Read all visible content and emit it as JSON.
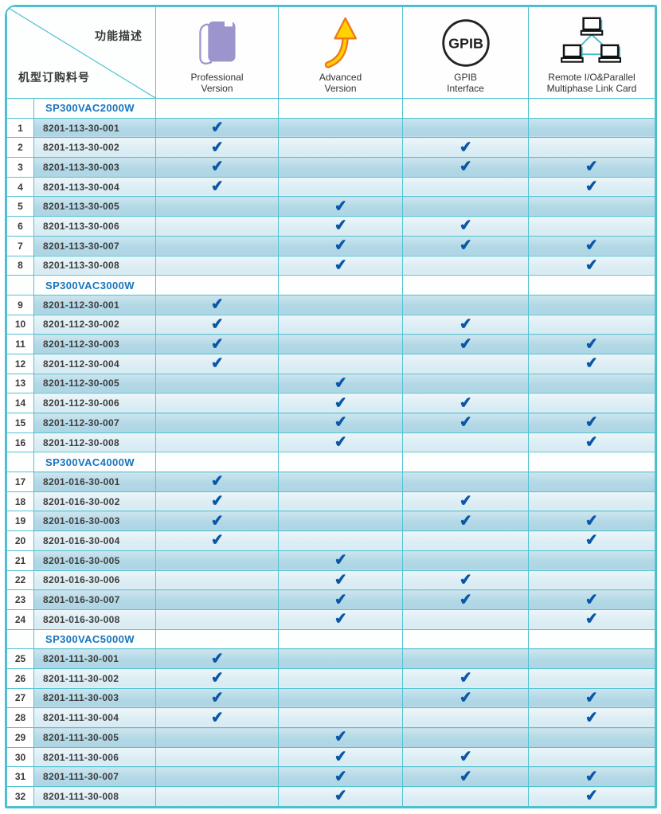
{
  "check_glyph": "✔",
  "colors": {
    "border_cyan": "#4bbfd2",
    "row_dark": "#b2d8e6",
    "row_light": "#dcedf4",
    "check_blue": "#0a57a7",
    "model_blue": "#1874bd",
    "book_purple": "#9b94cd",
    "arrow_yellow": "#ffd200",
    "arrow_orange": "#f07818",
    "laptop_teal": "#45b8c8"
  },
  "header": {
    "diagonal_top": "功能描述",
    "diagonal_bottom": "机型订购料号",
    "columns": [
      {
        "id": "professional",
        "icon": "book-icon",
        "label_lines": [
          "Professional",
          "Version"
        ]
      },
      {
        "id": "advanced",
        "icon": "up-arrow-icon",
        "label_lines": [
          "Advanced",
          "Version"
        ]
      },
      {
        "id": "gpib",
        "icon": "gpib-circle-icon",
        "icon_text": "GPIB",
        "label_lines": [
          "GPIB",
          "Interface"
        ]
      },
      {
        "id": "remote",
        "icon": "network-computers-icon",
        "label_lines": [
          "Remote I/O&Parallel",
          "Multiphase Link Card"
        ]
      }
    ]
  },
  "sections": [
    {
      "model": "SP300VAC2000W",
      "rows": [
        {
          "num": "1",
          "part": "8201-113-30-001",
          "checks": [
            1,
            0,
            0,
            0
          ]
        },
        {
          "num": "2",
          "part": "8201-113-30-002",
          "checks": [
            1,
            0,
            1,
            0
          ]
        },
        {
          "num": "3",
          "part": "8201-113-30-003",
          "checks": [
            1,
            0,
            1,
            1
          ]
        },
        {
          "num": "4",
          "part": "8201-113-30-004",
          "checks": [
            1,
            0,
            0,
            1
          ]
        },
        {
          "num": "5",
          "part": "8201-113-30-005",
          "checks": [
            0,
            1,
            0,
            0
          ]
        },
        {
          "num": "6",
          "part": "8201-113-30-006",
          "checks": [
            0,
            1,
            1,
            0
          ]
        },
        {
          "num": "7",
          "part": "8201-113-30-007",
          "checks": [
            0,
            1,
            1,
            1
          ]
        },
        {
          "num": "8",
          "part": "8201-113-30-008",
          "checks": [
            0,
            1,
            0,
            1
          ]
        }
      ]
    },
    {
      "model": "SP300VAC3000W",
      "rows": [
        {
          "num": "9",
          "part": "8201-112-30-001",
          "checks": [
            1,
            0,
            0,
            0
          ]
        },
        {
          "num": "10",
          "part": "8201-112-30-002",
          "checks": [
            1,
            0,
            1,
            0
          ]
        },
        {
          "num": "11",
          "part": "8201-112-30-003",
          "checks": [
            1,
            0,
            1,
            1
          ]
        },
        {
          "num": "12",
          "part": "8201-112-30-004",
          "checks": [
            1,
            0,
            0,
            1
          ]
        },
        {
          "num": "13",
          "part": "8201-112-30-005",
          "checks": [
            0,
            1,
            0,
            0
          ]
        },
        {
          "num": "14",
          "part": "8201-112-30-006",
          "checks": [
            0,
            1,
            1,
            0
          ]
        },
        {
          "num": "15",
          "part": "8201-112-30-007",
          "checks": [
            0,
            1,
            1,
            1
          ]
        },
        {
          "num": "16",
          "part": "8201-112-30-008",
          "checks": [
            0,
            1,
            0,
            1
          ]
        }
      ]
    },
    {
      "model": "SP300VAC4000W",
      "rows": [
        {
          "num": "17",
          "part": "8201-016-30-001",
          "checks": [
            1,
            0,
            0,
            0
          ]
        },
        {
          "num": "18",
          "part": "8201-016-30-002",
          "checks": [
            1,
            0,
            1,
            0
          ]
        },
        {
          "num": "19",
          "part": "8201-016-30-003",
          "checks": [
            1,
            0,
            1,
            1
          ]
        },
        {
          "num": "20",
          "part": "8201-016-30-004",
          "checks": [
            1,
            0,
            0,
            1
          ]
        },
        {
          "num": "21",
          "part": "8201-016-30-005",
          "checks": [
            0,
            1,
            0,
            0
          ]
        },
        {
          "num": "22",
          "part": "8201-016-30-006",
          "checks": [
            0,
            1,
            1,
            0
          ]
        },
        {
          "num": "23",
          "part": "8201-016-30-007",
          "checks": [
            0,
            1,
            1,
            1
          ]
        },
        {
          "num": "24",
          "part": "8201-016-30-008",
          "checks": [
            0,
            1,
            0,
            1
          ]
        }
      ]
    },
    {
      "model": "SP300VAC5000W",
      "rows": [
        {
          "num": "25",
          "part": "8201-111-30-001",
          "checks": [
            1,
            0,
            0,
            0
          ]
        },
        {
          "num": "26",
          "part": "8201-111-30-002",
          "checks": [
            1,
            0,
            1,
            0
          ]
        },
        {
          "num": "27",
          "part": "8201-111-30-003",
          "checks": [
            1,
            0,
            1,
            1
          ]
        },
        {
          "num": "28",
          "part": "8201-111-30-004",
          "checks": [
            1,
            0,
            0,
            1
          ]
        },
        {
          "num": "29",
          "part": "8201-111-30-005",
          "checks": [
            0,
            1,
            0,
            0
          ]
        },
        {
          "num": "30",
          "part": "8201-111-30-006",
          "checks": [
            0,
            1,
            1,
            0
          ]
        },
        {
          "num": "31",
          "part": "8201-111-30-007",
          "checks": [
            0,
            1,
            1,
            1
          ]
        },
        {
          "num": "32",
          "part": "8201-111-30-008",
          "checks": [
            0,
            1,
            0,
            1
          ]
        }
      ]
    }
  ]
}
